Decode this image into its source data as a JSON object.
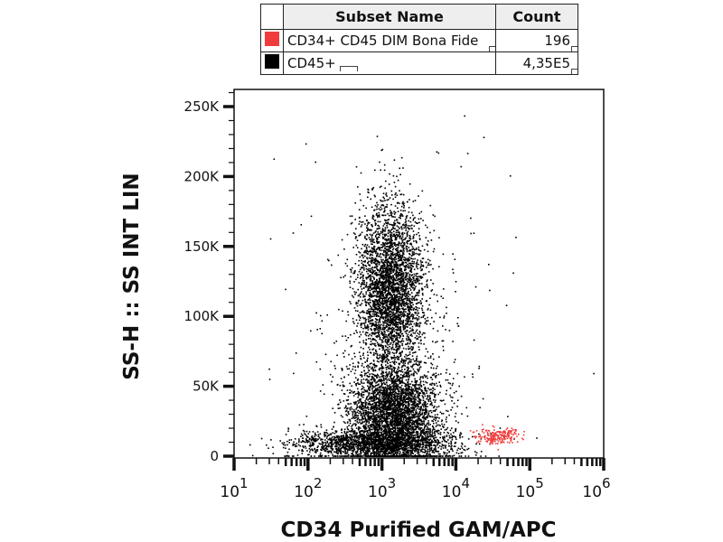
{
  "legend": {
    "headers": [
      "Subset Name",
      "Count"
    ],
    "rows": [
      {
        "name": "CD34+ CD45 DIM Bona Fide",
        "count": "196",
        "color": "#f03c3c"
      },
      {
        "name": "CD45+",
        "count": "4,35E5",
        "color": "#000000"
      }
    ]
  },
  "chart_data": {
    "type": "scatter",
    "xlabel": "CD34 Purified GAM/APC",
    "ylabel": "SS-H :: SS INT LIN",
    "xscale": "log",
    "xlim": [
      10,
      1000000
    ],
    "ylim": [
      0,
      260000
    ],
    "x_ticks": [
      {
        "base": "10",
        "exp": "1"
      },
      {
        "base": "10",
        "exp": "2"
      },
      {
        "base": "10",
        "exp": "3"
      },
      {
        "base": "10",
        "exp": "4"
      },
      {
        "base": "10",
        "exp": "5"
      },
      {
        "base": "10",
        "exp": "6"
      }
    ],
    "y_ticks": [
      {
        "v": 0,
        "label": "0"
      },
      {
        "v": 50000,
        "label": "50K"
      },
      {
        "v": 100000,
        "label": "100K"
      },
      {
        "v": 150000,
        "label": "150K"
      },
      {
        "v": 200000,
        "label": "200K"
      },
      {
        "v": 250000,
        "label": "250K"
      }
    ],
    "populations": [
      {
        "name": "CD45+",
        "color": "#000000",
        "count": 435000,
        "clusters": [
          {
            "log10x": 3.1,
            "y": 120000,
            "sdlog": 0.22,
            "sdy": 30000,
            "w": 0.38
          },
          {
            "log10x": 3.15,
            "y": 30000,
            "sdlog": 0.3,
            "sdy": 18000,
            "w": 0.4
          },
          {
            "log10x": 2.9,
            "y": 9000,
            "sdlog": 0.55,
            "sdy": 5000,
            "w": 0.18
          },
          {
            "log10x": 3.2,
            "y": 80000,
            "sdlog": 0.7,
            "sdy": 70000,
            "w": 0.04
          }
        ]
      },
      {
        "name": "CD34+ CD45 DIM Bona Fide",
        "color": "#f03c3c",
        "count": 196,
        "clusters": [
          {
            "log10x": 4.55,
            "y": 15000,
            "sdlog": 0.15,
            "sdy": 3000,
            "w": 1
          }
        ]
      }
    ]
  }
}
